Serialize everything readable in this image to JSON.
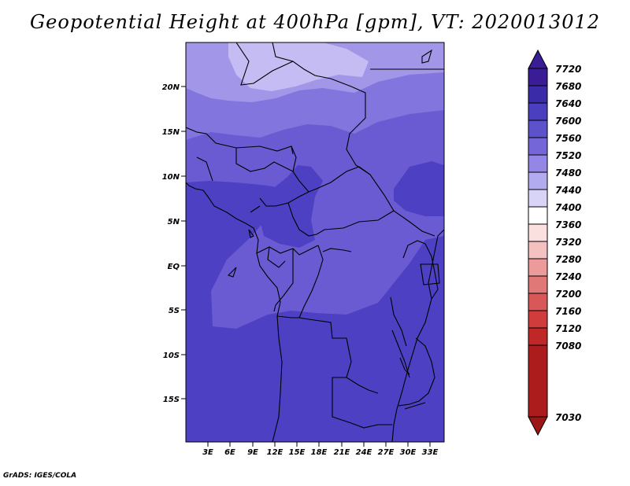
{
  "title": "Geopotential Height at 400hPa [gpm], VT: 2020013012",
  "credit": "GrADS: IGES/COLA",
  "map": {
    "lat_labels": [
      "20N",
      "15N",
      "10N",
      "5N",
      "EQ",
      "5S",
      "10S",
      "15S"
    ],
    "lon_labels": [
      "3E",
      "6E",
      "9E",
      "12E",
      "15E",
      "18E",
      "21E",
      "24E",
      "27E",
      "30E",
      "33E"
    ]
  },
  "colorbar": {
    "levels": [
      "7720",
      "7680",
      "7640",
      "7600",
      "7560",
      "7520",
      "7480",
      "7440",
      "7400",
      "7360",
      "7320",
      "7280",
      "7240",
      "7200",
      "7160",
      "7120",
      "7080",
      "7030"
    ],
    "colors": {
      "top_triangle": "#3a1c96",
      "7680_7720": "#3a1c96",
      "7640_7680": "#3a2ca8",
      "7600_7640": "#4a3fbe",
      "7560_7600": "#5d52cc",
      "7520_7560": "#7466d8",
      "7480_7520": "#9486e6",
      "7440_7480": "#b3abf0",
      "7400_7440": "#d8d4f7",
      "7360_7400": "#ffffff",
      "7320_7360": "#fbe0e0",
      "7280_7320": "#f5c0c0",
      "7240_7280": "#ec9a9a",
      "7200_7240": "#e07878",
      "7160_7200": "#d85858",
      "7120_7160": "#d03b3b",
      "7080_7120": "#c02828",
      "7030_7080": "#ad1c1c",
      "bottom_triangle": "#9c1616"
    }
  },
  "field_colors": {
    "c7440": "#c4bcf3",
    "c7480": "#a296e9",
    "c7520": "#8275dd",
    "c7560": "#6a5bd3",
    "c7600": "#4d40c3"
  }
}
